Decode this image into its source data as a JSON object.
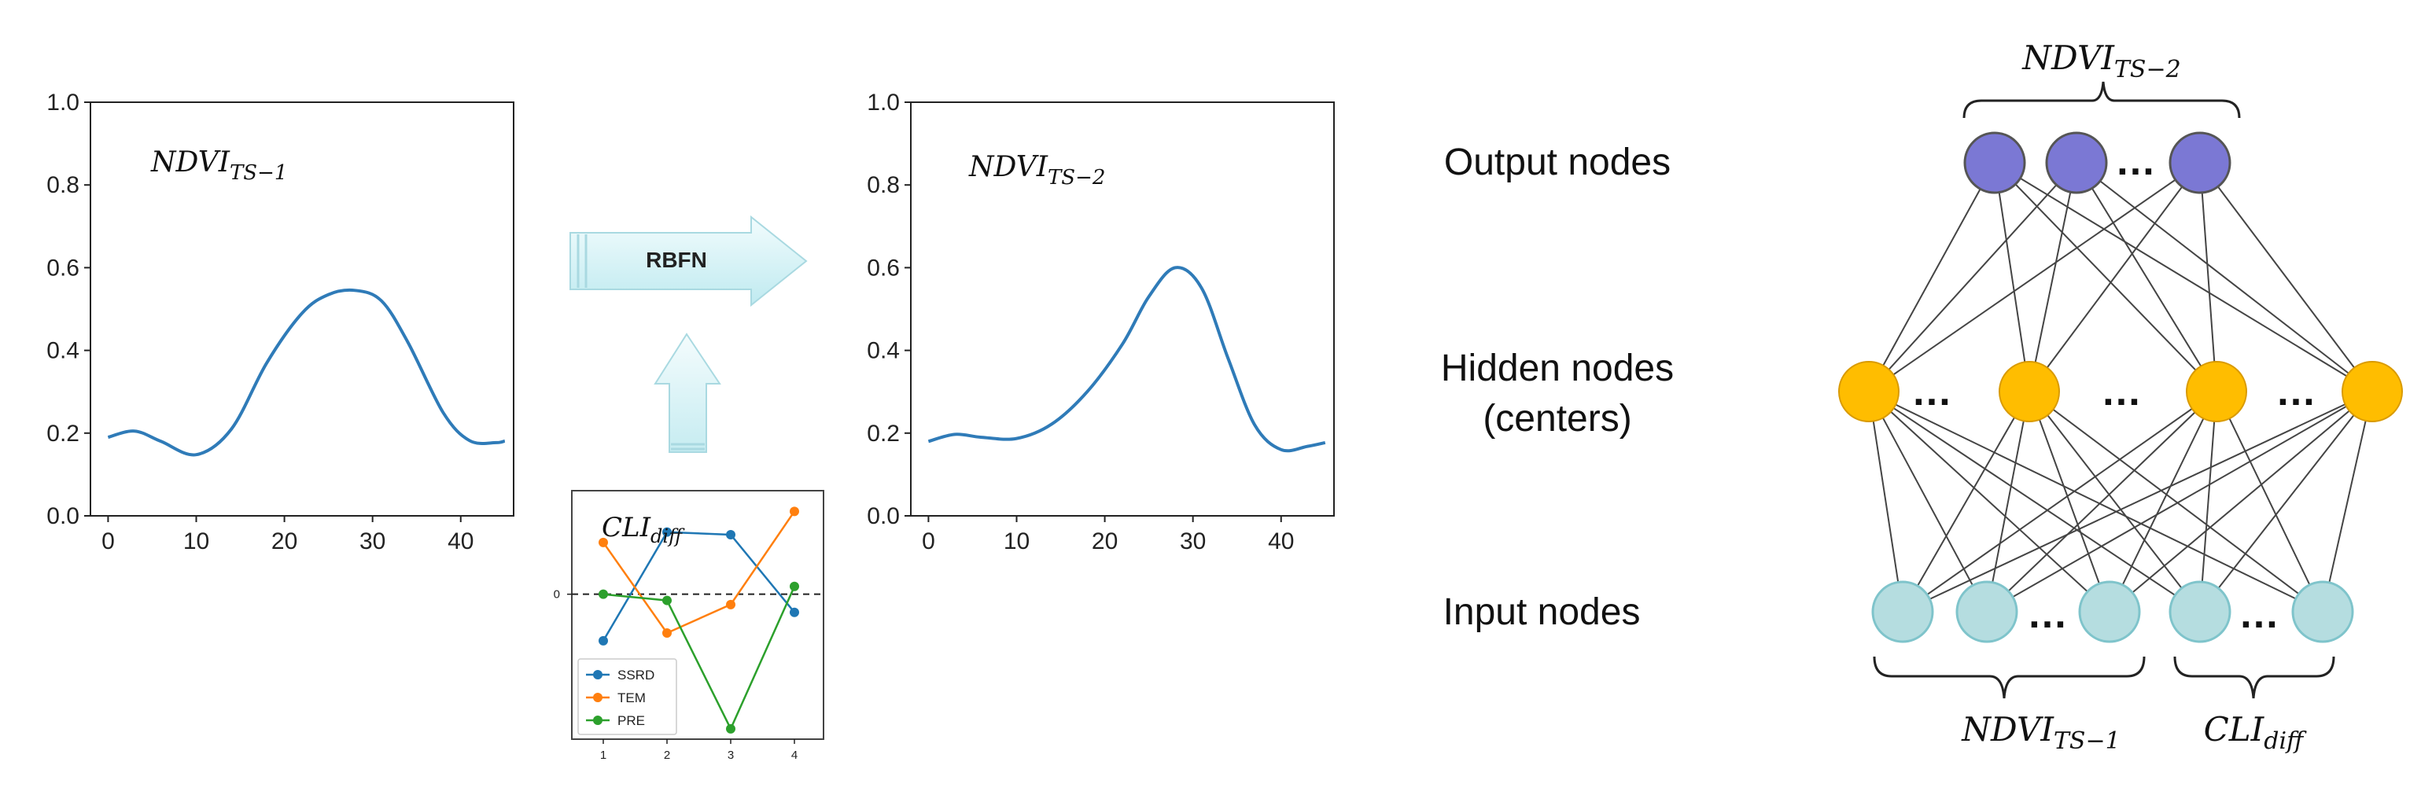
{
  "left_plot": {
    "label_base": "NDVI",
    "label_sub": "TS−1",
    "yticks": [
      "0.0",
      "0.2",
      "0.4",
      "0.6",
      "0.8",
      "1.0"
    ],
    "xticks": [
      "0",
      "10",
      "20",
      "30",
      "40"
    ]
  },
  "arrow_label": "RBFN",
  "right_plot": {
    "label_base": "NDVI",
    "label_sub": "TS−2",
    "yticks": [
      "0.0",
      "0.2",
      "0.4",
      "0.6",
      "0.8",
      "1.0"
    ],
    "xticks": [
      "0",
      "10",
      "20",
      "30",
      "40"
    ]
  },
  "cli_plot": {
    "label_base": "CLI",
    "label_sub": "diff",
    "ytick": "0",
    "xticks": [
      "1",
      "2",
      "3",
      "4"
    ],
    "legend": [
      "SSRD",
      "TEM",
      "PRE"
    ]
  },
  "network": {
    "output_label": "Output nodes",
    "hidden_label_1": "Hidden nodes",
    "hidden_label_2": "(centers)",
    "input_label": "Input nodes",
    "top_brace_base": "NDVI",
    "top_brace_sub": "TS−2",
    "bottom_left_base": "NDVI",
    "bottom_left_sub": "TS−1",
    "bottom_right_base": "CLI",
    "bottom_right_sub": "diff",
    "ellipsis": "…",
    "colors": {
      "output": "#7b78d4",
      "hidden": "#ffbd00",
      "input": "#b5dde0"
    }
  },
  "chart_data": [
    {
      "type": "line",
      "xlim": [
        -2,
        46
      ],
      "ylim": [
        0,
        1
      ],
      "x": [
        0,
        3,
        6,
        10,
        14,
        18,
        22,
        25,
        28,
        31,
        34,
        38,
        41,
        44,
        45
      ],
      "y": [
        0.19,
        0.205,
        0.18,
        0.148,
        0.21,
        0.37,
        0.49,
        0.535,
        0.545,
        0.52,
        0.42,
        0.25,
        0.182,
        0.177,
        0.181
      ]
    },
    {
      "type": "line",
      "xlim": [
        -2,
        46
      ],
      "ylim": [
        0,
        1
      ],
      "x": [
        0,
        3,
        6,
        10,
        14,
        18,
        22,
        25,
        28,
        31,
        34,
        37,
        40,
        43,
        45
      ],
      "y": [
        0.18,
        0.197,
        0.19,
        0.187,
        0.222,
        0.3,
        0.415,
        0.53,
        0.6,
        0.55,
        0.38,
        0.22,
        0.16,
        0.168,
        0.177
      ]
    },
    {
      "type": "line",
      "x": [
        1,
        2,
        3,
        4
      ],
      "series": [
        {
          "name": "SSRD",
          "color": "#1f77b4",
          "values": [
            -0.9,
            1.2,
            1.15,
            -0.35
          ]
        },
        {
          "name": "TEM",
          "color": "#ff7f0e",
          "values": [
            1.0,
            -0.75,
            -0.2,
            1.6
          ]
        },
        {
          "name": "PRE",
          "color": "#2ca02c",
          "values": [
            0.0,
            -0.12,
            -2.6,
            0.15
          ]
        }
      ],
      "ylim": [
        -2.8,
        2.0
      ],
      "ytick": 0
    }
  ]
}
